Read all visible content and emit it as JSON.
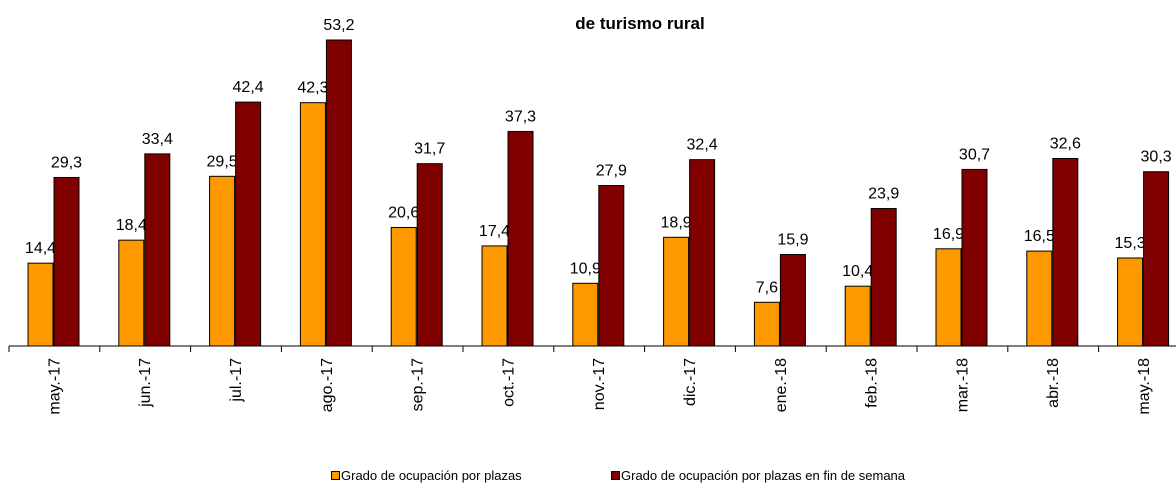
{
  "chart_data": {
    "type": "bar",
    "title": "de turismo rural",
    "categories": [
      "may.-17",
      "jun.-17",
      "jul.-17",
      "ago.-17",
      "sep.-17",
      "oct.-17",
      "nov.-17",
      "dic.-17",
      "ene.-18",
      "feb.-18",
      "mar.-18",
      "abr.-18",
      "may.-18"
    ],
    "series": [
      {
        "name": "Grado de ocupación por plazas",
        "color": "#ff9900",
        "values": [
          14.4,
          18.4,
          29.5,
          42.3,
          20.6,
          17.4,
          10.9,
          18.9,
          7.6,
          10.4,
          16.9,
          16.5,
          15.3
        ],
        "labels": [
          "14,4",
          "18,4",
          "29,5",
          "42,3",
          "20,6",
          "17,4",
          "10,9",
          "18,9",
          "7,6",
          "10,4",
          "16,9",
          "16,5",
          "15,3"
        ]
      },
      {
        "name": "Grado de ocupación por plazas en fin de semana",
        "color": "#800000",
        "values": [
          29.3,
          33.4,
          42.4,
          53.2,
          31.7,
          37.3,
          27.9,
          32.4,
          15.9,
          23.9,
          30.7,
          32.6,
          30.3
        ],
        "labels": [
          "29,3",
          "33,4",
          "42,4",
          "53,2",
          "31,7",
          "37,3",
          "27,9",
          "32,4",
          "15,9",
          "23,9",
          "30,7",
          "32,6",
          "30,3"
        ]
      }
    ],
    "ylim": [
      0,
      55
    ],
    "grid": false,
    "legend_position": "bottom"
  }
}
